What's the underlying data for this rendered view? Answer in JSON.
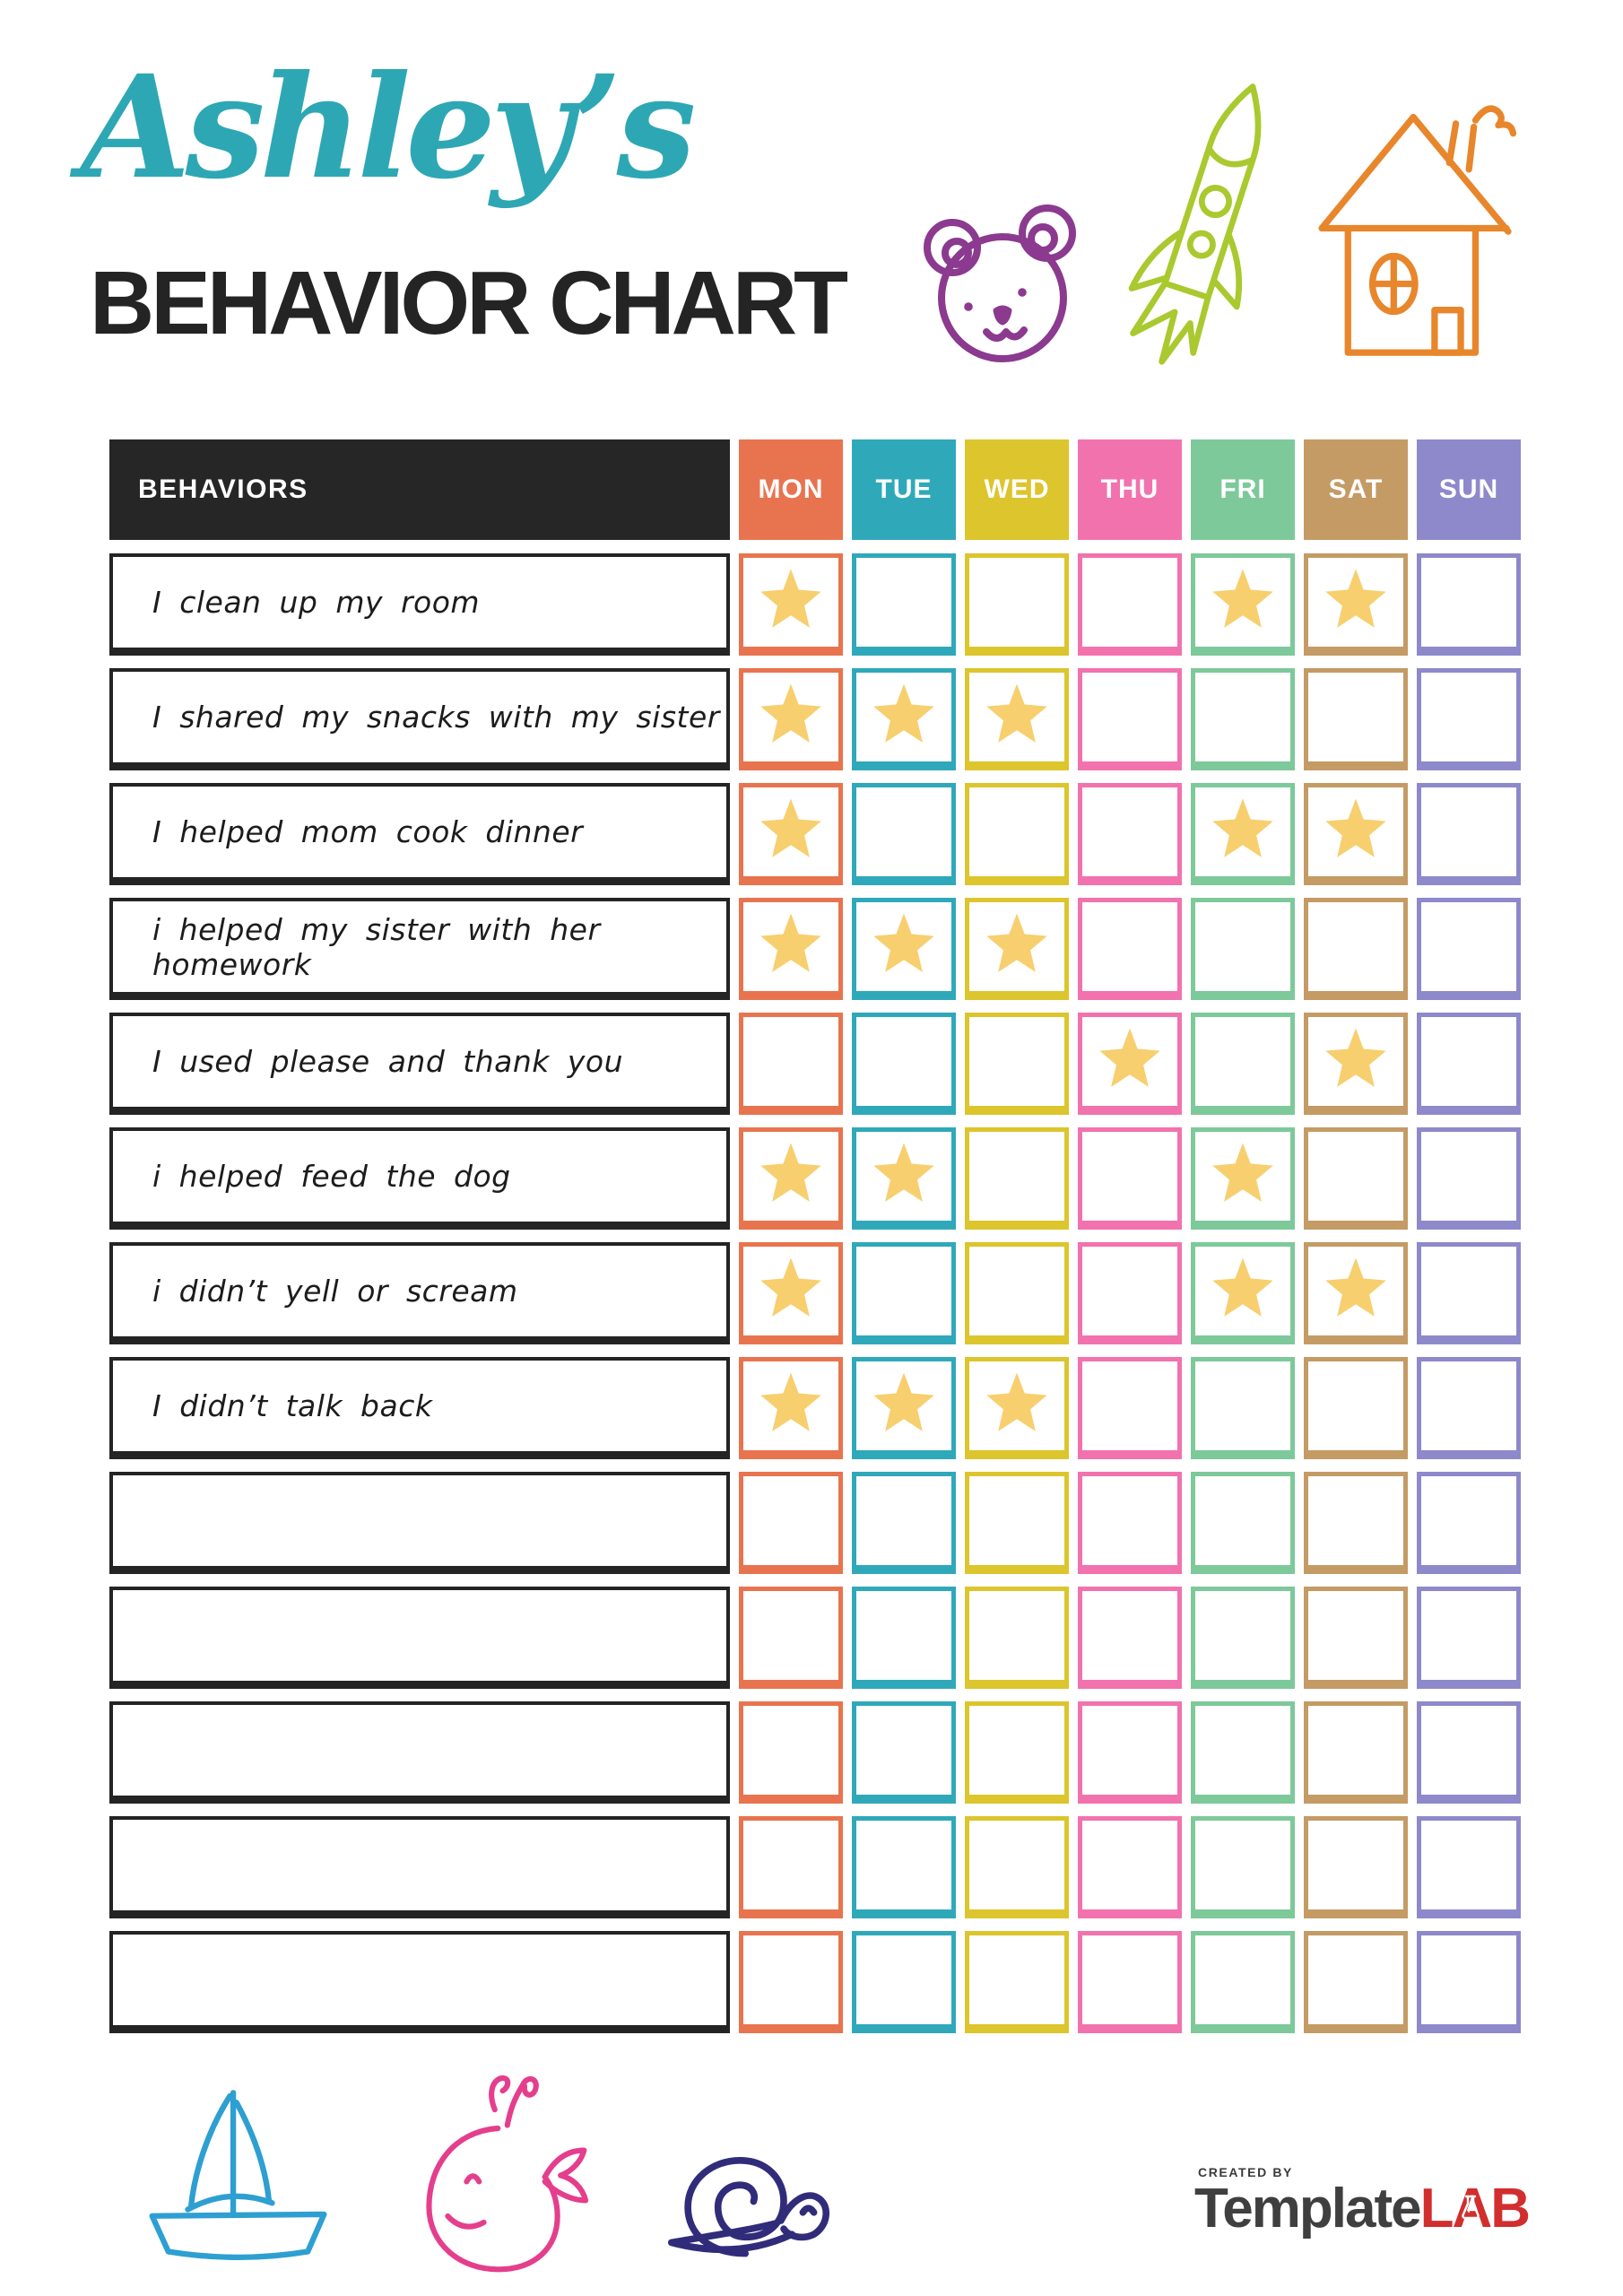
{
  "header": {
    "name": "Ashley’s",
    "title": "BEHAVIOR CHART"
  },
  "doodles": {
    "top": [
      {
        "name": "bear",
        "color": "#8B3A8F"
      },
      {
        "name": "rocket",
        "color": "#A9C92F"
      },
      {
        "name": "house",
        "color": "#E8862C"
      }
    ],
    "bottom": [
      {
        "name": "sailboat",
        "color": "#2E9FD1"
      },
      {
        "name": "whale",
        "color": "#E53E8D"
      },
      {
        "name": "snail",
        "color": "#312C7A"
      }
    ]
  },
  "colors": {
    "title_accent": "#2EA7B4",
    "title_text": "#242424",
    "behaviors_header_bg": "#262626",
    "row_border": "#242424",
    "star": "#F7CF6F"
  },
  "table": {
    "behaviors_header": "BEHAVIORS",
    "day_headers": [
      {
        "label": "MON",
        "color": "#E8744F"
      },
      {
        "label": "TUE",
        "color": "#2FA9BA"
      },
      {
        "label": "WED",
        "color": "#DCC52D"
      },
      {
        "label": "THU",
        "color": "#F272AE"
      },
      {
        "label": "FRI",
        "color": "#7DC99A"
      },
      {
        "label": "SAT",
        "color": "#C49B64"
      },
      {
        "label": "SUN",
        "color": "#8E89CB"
      }
    ],
    "rows": [
      {
        "label": "I clean up my room",
        "stars": [
          "MON",
          "FRI",
          "SAT"
        ]
      },
      {
        "label": "I shared my snacks with my sister",
        "stars": [
          "MON",
          "TUE",
          "WED"
        ]
      },
      {
        "label": "I helped mom cook dinner",
        "stars": [
          "MON",
          "FRI",
          "SAT"
        ]
      },
      {
        "label": "i helped my sister with her homework",
        "stars": [
          "MON",
          "TUE",
          "WED"
        ]
      },
      {
        "label": "I used please and thank you",
        "stars": [
          "THU",
          "SAT"
        ]
      },
      {
        "label": "i helped feed the dog",
        "stars": [
          "MON",
          "TUE",
          "FRI"
        ]
      },
      {
        "label": "i didn’t yell or scream",
        "stars": [
          "MON",
          "FRI",
          "SAT"
        ]
      },
      {
        "label": "I didn’t talk back",
        "stars": [
          "MON",
          "TUE",
          "WED"
        ]
      },
      {
        "label": "",
        "stars": []
      },
      {
        "label": "",
        "stars": []
      },
      {
        "label": "",
        "stars": []
      },
      {
        "label": "",
        "stars": []
      },
      {
        "label": "",
        "stars": []
      }
    ]
  },
  "footer": {
    "created_by": "CREATED BY",
    "brand_name": "Template",
    "brand_suffix": "LAB"
  }
}
